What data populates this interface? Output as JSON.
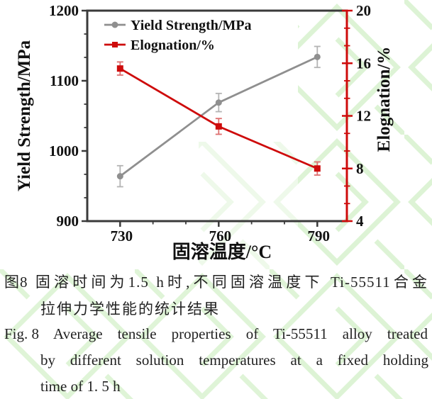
{
  "figure": {
    "caption_cn": {
      "label": "图8",
      "line1": "固溶时间为1.5 h时,不同固溶温度下 Ti-55511合金",
      "line2": "拉伸力学性能的统计结果"
    },
    "caption_en": {
      "label": "Fig. 8",
      "line1": "Average tensile properties of Ti-55511 alloy treated",
      "line2": "by different solution temperatures at a fixed holding",
      "line3": "time of 1. 5 h"
    }
  },
  "colors": {
    "axis": "#3a3a3a",
    "tick_text": "#111111",
    "right_axis": "#ce0b0b",
    "watermark": "#d9f2d0",
    "caption_text": "#222222"
  },
  "chart_data": {
    "type": "line",
    "title": "",
    "xlabel": "固溶温度/°C",
    "xlim": [
      720,
      799
    ],
    "x_ticks": [
      730,
      760,
      790
    ],
    "x_categories": [
      730,
      760,
      790
    ],
    "left_axis": {
      "label": "Yield Strength/MPa",
      "lim": [
        900,
        1200
      ],
      "ticks": [
        900,
        1000,
        1100,
        1200
      ]
    },
    "right_axis": {
      "label": "Elognation/%",
      "lim": [
        4,
        20
      ],
      "ticks": [
        4,
        8,
        12,
        16,
        20
      ]
    },
    "minor_ticks_per_interval": 2,
    "grid": false,
    "legend_position": "top-left",
    "series": [
      {
        "name": "Yield Strength/MPa",
        "axis": "left",
        "marker": "circle",
        "color": "#8f8f8f",
        "error_color": "#b4b4b4",
        "x": [
          730,
          760,
          790
        ],
        "values": [
          964,
          1069,
          1134
        ],
        "errors": [
          15,
          13,
          15
        ]
      },
      {
        "name": "Elognation/%",
        "axis": "right",
        "marker": "square",
        "color": "#ce0b0b",
        "error_color": "#dd7070",
        "x": [
          730,
          760,
          790
        ],
        "values": [
          15.6,
          11.2,
          8.0
        ],
        "errors": [
          0.5,
          0.6,
          0.5
        ]
      }
    ]
  }
}
